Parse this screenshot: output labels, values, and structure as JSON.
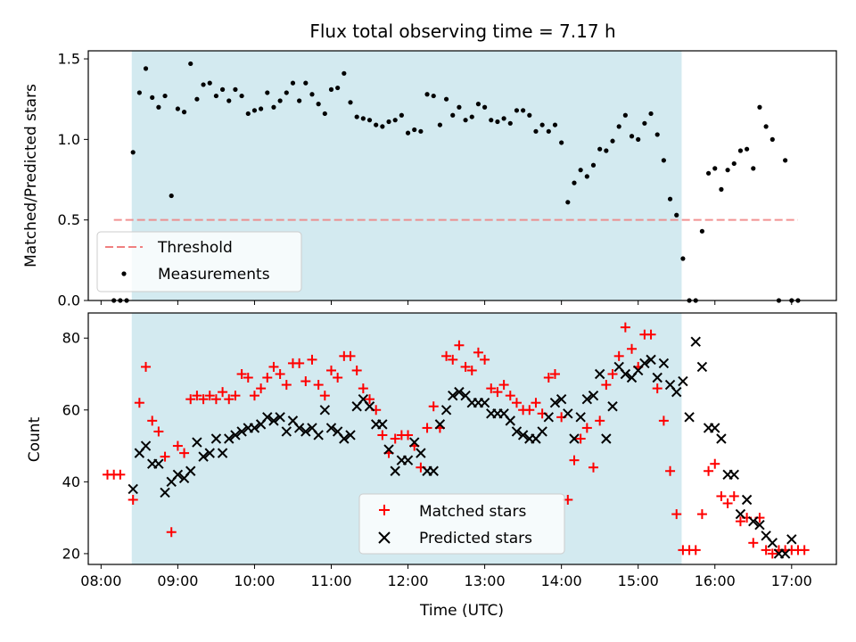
{
  "chart_data": [
    {
      "type": "scatter",
      "title": "Flux total observing time = 7.17 h",
      "xlabel": "",
      "ylabel": "Matched/Predicted stars",
      "xlim": [
        "07:50",
        "17:35"
      ],
      "ylim": [
        0,
        1.55
      ],
      "yticks": [
        "0.0",
        "0.5",
        "1.0",
        "1.5"
      ],
      "shaded_interval": [
        "08:24",
        "15:34"
      ],
      "shade_color": "#d3eaf0",
      "legend_position": "lower-left",
      "series": [
        {
          "name": "Threshold",
          "style": "dashed-line",
          "color": "#f08080",
          "x": [
            "08:10",
            "17:05"
          ],
          "y": [
            0.5,
            0.5
          ]
        },
        {
          "name": "Measurements",
          "style": "dot",
          "color": "#000000",
          "x": [
            "08:10",
            "08:15",
            "08:20",
            "08:25",
            "08:30",
            "08:35",
            "08:40",
            "08:45",
            "08:50",
            "08:55",
            "09:00",
            "09:05",
            "09:10",
            "09:15",
            "09:20",
            "09:25",
            "09:30",
            "09:35",
            "09:40",
            "09:45",
            "09:50",
            "09:55",
            "10:00",
            "10:05",
            "10:10",
            "10:15",
            "10:20",
            "10:25",
            "10:30",
            "10:35",
            "10:40",
            "10:45",
            "10:50",
            "10:55",
            "11:00",
            "11:05",
            "11:10",
            "11:15",
            "11:20",
            "11:25",
            "11:30",
            "11:35",
            "11:40",
            "11:45",
            "11:50",
            "11:55",
            "12:00",
            "12:05",
            "12:10",
            "12:15",
            "12:20",
            "12:25",
            "12:30",
            "12:35",
            "12:40",
            "12:45",
            "12:50",
            "12:55",
            "13:00",
            "13:05",
            "13:10",
            "13:15",
            "13:20",
            "13:25",
            "13:30",
            "13:35",
            "13:40",
            "13:45",
            "13:50",
            "13:55",
            "14:00",
            "14:05",
            "14:10",
            "14:15",
            "14:20",
            "14:25",
            "14:30",
            "14:35",
            "14:40",
            "14:45",
            "14:50",
            "14:55",
            "15:00",
            "15:05",
            "15:10",
            "15:15",
            "15:20",
            "15:25",
            "15:30",
            "15:35",
            "15:40",
            "15:45",
            "15:50",
            "15:55",
            "16:00",
            "16:05",
            "16:10",
            "16:15",
            "16:20",
            "16:25",
            "16:30",
            "16:35",
            "16:40",
            "16:45",
            "16:50",
            "16:55",
            "17:00",
            "17:05"
          ],
          "y": [
            0.0,
            0.0,
            0.0,
            0.92,
            1.29,
            1.44,
            1.26,
            1.2,
            1.27,
            0.65,
            1.19,
            1.17,
            1.47,
            1.25,
            1.34,
            1.35,
            1.27,
            1.31,
            1.24,
            1.31,
            1.27,
            1.16,
            1.18,
            1.19,
            1.29,
            1.2,
            1.24,
            1.29,
            1.35,
            1.24,
            1.35,
            1.28,
            1.22,
            1.16,
            1.31,
            1.32,
            1.41,
            1.23,
            1.14,
            1.13,
            1.12,
            1.09,
            1.08,
            1.11,
            1.12,
            1.15,
            1.04,
            1.06,
            1.05,
            1.28,
            1.27,
            1.09,
            1.25,
            1.15,
            1.2,
            1.12,
            1.14,
            1.22,
            1.2,
            1.12,
            1.11,
            1.13,
            1.1,
            1.18,
            1.18,
            1.15,
            1.05,
            1.09,
            1.05,
            1.09,
            0.98,
            0.61,
            0.73,
            0.81,
            0.77,
            0.84,
            0.94,
            0.93,
            0.99,
            1.08,
            1.15,
            1.02,
            1.0,
            1.1,
            1.16,
            1.03,
            0.87,
            0.63,
            0.53,
            0.26,
            0.0,
            0.0,
            0.43,
            0.79,
            0.82,
            0.69,
            0.81,
            0.85,
            0.93,
            0.94,
            0.82,
            1.2,
            1.08,
            1.0,
            0.0,
            0.87,
            0.0,
            0.0
          ]
        }
      ]
    },
    {
      "type": "scatter",
      "title": "",
      "xlabel": "Time (UTC)",
      "ylabel": "Count",
      "xlim": [
        "07:50",
        "17:35"
      ],
      "ylim": [
        17,
        87
      ],
      "yticks": [
        "20",
        "40",
        "60",
        "80"
      ],
      "xticks": [
        "08:00",
        "09:00",
        "10:00",
        "11:00",
        "12:00",
        "13:00",
        "14:00",
        "15:00",
        "16:00",
        "17:00"
      ],
      "shaded_interval": [
        "08:24",
        "15:34"
      ],
      "shade_color": "#d3eaf0",
      "legend_position": "lower-center",
      "series": [
        {
          "name": "Matched stars",
          "style": "plus",
          "color": "#ff0000",
          "x": [
            "08:05",
            "08:10",
            "08:15",
            "08:25",
            "08:30",
            "08:35",
            "08:40",
            "08:45",
            "08:50",
            "08:55",
            "09:00",
            "09:05",
            "09:10",
            "09:15",
            "09:20",
            "09:25",
            "09:30",
            "09:35",
            "09:40",
            "09:45",
            "09:50",
            "09:55",
            "10:00",
            "10:05",
            "10:10",
            "10:15",
            "10:20",
            "10:25",
            "10:30",
            "10:35",
            "10:40",
            "10:45",
            "10:50",
            "10:55",
            "11:00",
            "11:05",
            "11:10",
            "11:15",
            "11:20",
            "11:25",
            "11:30",
            "11:35",
            "11:40",
            "11:45",
            "11:50",
            "11:55",
            "12:00",
            "12:05",
            "12:10",
            "12:15",
            "12:20",
            "12:25",
            "12:30",
            "12:35",
            "12:40",
            "12:45",
            "12:50",
            "12:55",
            "13:00",
            "13:05",
            "13:10",
            "13:15",
            "13:20",
            "13:25",
            "13:30",
            "13:35",
            "13:40",
            "13:45",
            "13:50",
            "13:55",
            "14:00",
            "14:05",
            "14:10",
            "14:15",
            "14:20",
            "14:25",
            "14:30",
            "14:35",
            "14:40",
            "14:45",
            "14:50",
            "14:55",
            "15:00",
            "15:05",
            "15:10",
            "15:15",
            "15:20",
            "15:25",
            "15:30",
            "15:35",
            "15:40",
            "15:45",
            "15:50",
            "15:55",
            "16:00",
            "16:05",
            "16:10",
            "16:15",
            "16:20",
            "16:25",
            "16:30",
            "16:35",
            "16:40",
            "16:45",
            "16:50",
            "16:55",
            "17:00",
            "17:05",
            "17:10"
          ],
          "y": [
            42,
            42,
            42,
            35,
            62,
            72,
            57,
            54,
            47,
            26,
            50,
            48,
            63,
            64,
            63,
            64,
            63,
            65,
            63,
            64,
            70,
            69,
            64,
            66,
            69,
            72,
            70,
            67,
            73,
            73,
            68,
            74,
            67,
            64,
            71,
            69,
            75,
            75,
            71,
            66,
            63,
            60,
            53,
            48,
            52,
            53,
            53,
            50,
            44,
            55,
            61,
            55,
            75,
            74,
            78,
            72,
            71,
            76,
            74,
            66,
            65,
            67,
            64,
            62,
            60,
            60,
            62,
            59,
            69,
            70,
            58,
            35,
            46,
            52,
            55,
            44,
            57,
            67,
            70,
            75,
            83,
            77,
            72,
            81,
            81,
            66,
            57,
            43,
            31,
            21,
            21,
            21,
            31,
            43,
            45,
            36,
            34,
            36,
            29,
            30,
            23,
            30,
            21,
            20,
            21,
            21,
            21,
            21,
            21
          ]
        },
        {
          "name": "Predicted stars",
          "style": "x",
          "color": "#000000",
          "x": [
            "08:25",
            "08:30",
            "08:35",
            "08:40",
            "08:45",
            "08:50",
            "08:55",
            "09:00",
            "09:05",
            "09:10",
            "09:15",
            "09:20",
            "09:25",
            "09:30",
            "09:35",
            "09:40",
            "09:45",
            "09:50",
            "09:55",
            "10:00",
            "10:05",
            "10:10",
            "10:15",
            "10:20",
            "10:25",
            "10:30",
            "10:35",
            "10:40",
            "10:45",
            "10:50",
            "10:55",
            "11:00",
            "11:05",
            "11:10",
            "11:15",
            "11:20",
            "11:25",
            "11:30",
            "11:35",
            "11:40",
            "11:45",
            "11:50",
            "11:55",
            "12:00",
            "12:05",
            "12:10",
            "12:15",
            "12:20",
            "12:25",
            "12:30",
            "12:35",
            "12:40",
            "12:45",
            "12:50",
            "12:55",
            "13:00",
            "13:05",
            "13:10",
            "13:15",
            "13:20",
            "13:25",
            "13:30",
            "13:35",
            "13:40",
            "13:45",
            "13:50",
            "13:55",
            "14:00",
            "14:05",
            "14:10",
            "14:15",
            "14:20",
            "14:25",
            "14:30",
            "14:35",
            "14:40",
            "14:45",
            "14:50",
            "14:55",
            "15:00",
            "15:05",
            "15:10",
            "15:15",
            "15:20",
            "15:25",
            "15:30",
            "15:35",
            "15:40",
            "15:45",
            "15:50",
            "15:55",
            "16:00",
            "16:05",
            "16:10",
            "16:15",
            "16:20",
            "16:25",
            "16:30",
            "16:35",
            "16:40",
            "16:45",
            "16:50",
            "16:55",
            "17:00"
          ],
          "y": [
            38,
            48,
            50,
            45,
            45,
            37,
            40,
            42,
            41,
            43,
            51,
            47,
            48,
            52,
            48,
            52,
            53,
            54,
            55,
            55,
            56,
            58,
            57,
            58,
            54,
            57,
            55,
            54,
            55,
            53,
            60,
            55,
            54,
            52,
            53,
            61,
            63,
            61,
            56,
            56,
            49,
            43,
            46,
            46,
            51,
            48,
            43,
            43,
            56,
            60,
            64,
            65,
            64,
            62,
            62,
            62,
            59,
            59,
            59,
            57,
            54,
            53,
            52,
            52,
            54,
            58,
            62,
            63,
            59,
            52,
            58,
            63,
            64,
            70,
            52,
            61,
            72,
            70,
            69,
            71,
            73,
            74,
            69,
            73,
            67,
            65,
            68,
            58,
            79,
            72,
            55,
            55,
            52,
            42,
            42,
            31,
            35,
            29,
            28,
            25,
            23,
            20,
            20,
            24
          ]
        }
      ]
    }
  ]
}
